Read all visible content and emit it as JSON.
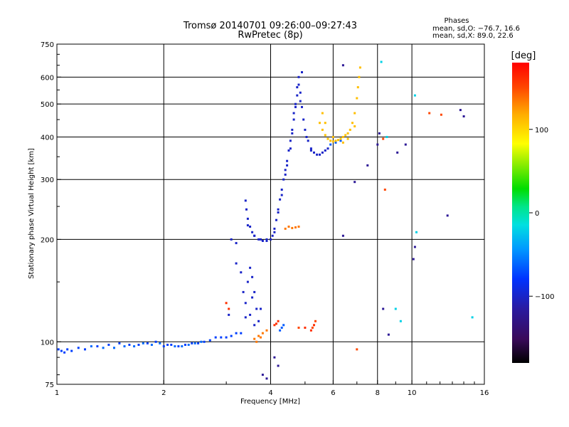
{
  "chart_data": {
    "type": "scatter",
    "title": "Tromsø 20140701 09:26:00–09:27:43",
    "subtitle": "RwPretec (8p)",
    "xlabel": "Frequency [MHz]",
    "ylabel": "Stationary phase Virtual Height [km]",
    "x_scale": "log",
    "y_scale": "log",
    "xlim": [
      1,
      16
    ],
    "ylim": [
      75,
      750
    ],
    "x_ticks": [
      1,
      2,
      4,
      6,
      8,
      10,
      16
    ],
    "y_ticks": [
      75,
      100,
      200,
      300,
      400,
      500,
      600,
      750
    ],
    "x_grid_lines": [
      2,
      4,
      6,
      8,
      10
    ],
    "y_grid_lines": [
      100,
      200,
      300,
      400,
      500,
      600
    ],
    "stats": {
      "heading": "Phases",
      "line1": "mean, sd,O: −76.7, 16.6",
      "line2": "mean, sd,X: 89.0, 22.6"
    },
    "colorbar": {
      "label": "[deg]",
      "range": [
        -180,
        180
      ],
      "ticks": [
        100,
        0,
        -100
      ]
    },
    "series": [
      {
        "phase": -75,
        "points": [
          [
            1.01,
            95
          ],
          [
            1.03,
            94
          ],
          [
            1.05,
            93
          ],
          [
            1.07,
            95
          ],
          [
            1.1,
            94
          ],
          [
            1.15,
            96
          ],
          [
            1.2,
            95
          ],
          [
            1.3,
            97
          ],
          [
            1.4,
            98
          ],
          [
            1.5,
            99
          ],
          [
            1.6,
            98
          ],
          [
            1.7,
            98
          ],
          [
            1.8,
            99
          ],
          [
            1.9,
            100
          ],
          [
            2.0,
            97
          ],
          [
            2.05,
            98
          ],
          [
            2.1,
            98
          ],
          [
            2.2,
            97
          ],
          [
            2.3,
            98
          ],
          [
            2.4,
            99
          ],
          [
            2.5,
            99
          ],
          [
            2.6,
            100
          ],
          [
            2.7,
            101
          ],
          [
            2.8,
            103
          ],
          [
            2.9,
            103
          ],
          [
            3.0,
            103
          ],
          [
            3.1,
            104
          ],
          [
            3.2,
            106
          ],
          [
            3.3,
            106
          ]
        ]
      },
      {
        "phase": -100,
        "points": [
          [
            3.4,
            130
          ],
          [
            3.45,
            150
          ],
          [
            3.5,
            165
          ],
          [
            3.55,
            155
          ],
          [
            3.6,
            140
          ],
          [
            3.65,
            125
          ],
          [
            3.7,
            115
          ],
          [
            3.5,
            120
          ],
          [
            3.4,
            118
          ],
          [
            3.55,
            135
          ],
          [
            3.6,
            112
          ],
          [
            3.35,
            140
          ],
          [
            3.75,
            125
          ],
          [
            3.2,
            170
          ],
          [
            3.3,
            160
          ],
          [
            3.1,
            200
          ],
          [
            3.2,
            195
          ],
          [
            3.05,
            120
          ]
        ]
      },
      {
        "phase": -100,
        "points": [
          [
            3.4,
            260
          ],
          [
            3.42,
            245
          ],
          [
            3.45,
            230
          ],
          [
            3.5,
            218
          ],
          [
            3.55,
            210
          ],
          [
            3.6,
            205
          ],
          [
            3.7,
            200
          ],
          [
            3.8,
            198
          ],
          [
            3.9,
            198
          ],
          [
            4.0,
            200
          ],
          [
            4.05,
            205
          ],
          [
            4.1,
            215
          ],
          [
            4.15,
            228
          ],
          [
            4.2,
            245
          ],
          [
            4.25,
            262
          ],
          [
            4.3,
            280
          ],
          [
            4.35,
            300
          ],
          [
            4.4,
            320
          ],
          [
            4.45,
            340
          ],
          [
            4.5,
            365
          ],
          [
            4.55,
            390
          ],
          [
            4.6,
            420
          ],
          [
            4.65,
            450
          ],
          [
            4.7,
            490
          ],
          [
            4.75,
            530
          ],
          [
            4.8,
            570
          ],
          [
            4.85,
            540
          ],
          [
            4.9,
            490
          ],
          [
            4.95,
            450
          ],
          [
            5.0,
            420
          ],
          [
            5.1,
            390
          ],
          [
            5.2,
            370
          ],
          [
            5.3,
            360
          ],
          [
            5.4,
            355
          ],
          [
            5.5,
            355
          ],
          [
            5.6,
            360
          ],
          [
            5.7,
            365
          ],
          [
            5.8,
            370
          ]
        ]
      },
      {
        "phase": -100,
        "points": [
          [
            3.45,
            220
          ],
          [
            3.6,
            205
          ],
          [
            3.75,
            200
          ],
          [
            3.9,
            200
          ],
          [
            4.1,
            210
          ],
          [
            4.3,
            270
          ],
          [
            4.45,
            330
          ],
          [
            4.6,
            410
          ],
          [
            4.7,
            500
          ],
          [
            4.8,
            600
          ],
          [
            4.9,
            620
          ],
          [
            5.05,
            400
          ],
          [
            5.2,
            365
          ],
          [
            4.2,
            240
          ],
          [
            4.4,
            310
          ],
          [
            4.55,
            370
          ],
          [
            4.65,
            470
          ],
          [
            4.75,
            560
          ],
          [
            4.85,
            510
          ]
        ]
      },
      {
        "phase": -65,
        "points": [
          [
            4.3,
            110
          ],
          [
            4.35,
            112
          ],
          [
            4.25,
            108
          ],
          [
            5.9,
            380
          ],
          [
            6.1,
            385
          ],
          [
            6.3,
            390
          ]
        ]
      },
      {
        "phase": 110,
        "points": [
          [
            5.5,
            440
          ],
          [
            5.6,
            420
          ],
          [
            5.7,
            405
          ],
          [
            5.8,
            395
          ],
          [
            5.9,
            390
          ],
          [
            6.0,
            388
          ],
          [
            6.1,
            390
          ],
          [
            6.2,
            392
          ],
          [
            6.3,
            395
          ],
          [
            6.4,
            400
          ],
          [
            6.5,
            405
          ],
          [
            6.6,
            410
          ],
          [
            6.7,
            420
          ],
          [
            6.8,
            440
          ],
          [
            6.9,
            470
          ],
          [
            7.0,
            520
          ],
          [
            7.05,
            560
          ],
          [
            7.1,
            600
          ],
          [
            7.15,
            640
          ],
          [
            5.6,
            470
          ],
          [
            5.7,
            440
          ],
          [
            6.0,
            400
          ],
          [
            6.4,
            385
          ],
          [
            6.6,
            395
          ],
          [
            6.9,
            430
          ]
        ]
      },
      {
        "phase": 135,
        "points": [
          [
            3.6,
            102
          ],
          [
            3.7,
            104
          ],
          [
            3.8,
            106
          ],
          [
            3.9,
            108
          ],
          [
            3.75,
            103
          ],
          [
            3.65,
            100
          ],
          [
            4.4,
            215
          ],
          [
            4.5,
            218
          ],
          [
            4.6,
            216
          ],
          [
            4.7,
            217
          ],
          [
            4.8,
            218
          ]
        ]
      },
      {
        "phase": 160,
        "points": [
          [
            4.1,
            112
          ],
          [
            4.2,
            115
          ],
          [
            4.15,
            113
          ],
          [
            5.0,
            110
          ],
          [
            5.2,
            108
          ],
          [
            5.3,
            112
          ],
          [
            3.0,
            130
          ],
          [
            3.05,
            125
          ]
        ]
      },
      {
        "phase": -60,
        "points": [
          [
            1.25,
            97
          ],
          [
            1.35,
            96
          ],
          [
            1.45,
            96
          ],
          [
            1.55,
            97
          ],
          [
            1.65,
            97
          ],
          [
            1.75,
            99
          ],
          [
            1.85,
            98
          ],
          [
            1.95,
            99
          ],
          [
            2.15,
            97
          ],
          [
            2.25,
            97
          ],
          [
            2.35,
            98
          ],
          [
            2.45,
            99
          ],
          [
            2.55,
            100
          ]
        ]
      },
      {
        "phase": -20,
        "points": [
          [
            8.2,
            665
          ],
          [
            10.2,
            530
          ],
          [
            9.0,
            125
          ],
          [
            14.8,
            118
          ],
          [
            9.3,
            115
          ],
          [
            10.3,
            210
          ],
          [
            8.5,
            400
          ]
        ]
      },
      {
        "phase": -120,
        "points": [
          [
            6.4,
            650
          ],
          [
            6.4,
            205
          ],
          [
            6.9,
            295
          ],
          [
            7.5,
            330
          ],
          [
            8.0,
            380
          ],
          [
            8.1,
            410
          ],
          [
            9.1,
            360
          ],
          [
            9.6,
            380
          ],
          [
            8.3,
            125
          ],
          [
            8.6,
            105
          ],
          [
            10.1,
            175
          ],
          [
            10.2,
            190
          ],
          [
            12.6,
            235
          ],
          [
            13.7,
            480
          ],
          [
            14.0,
            460
          ],
          [
            4.1,
            90
          ],
          [
            4.2,
            85
          ],
          [
            3.8,
            80
          ],
          [
            3.9,
            78
          ]
        ]
      },
      {
        "phase": 150,
        "points": [
          [
            11.2,
            470
          ],
          [
            12.1,
            465
          ],
          [
            7.0,
            95
          ],
          [
            8.3,
            395
          ],
          [
            8.4,
            280
          ],
          [
            5.25,
            110
          ],
          [
            5.35,
            115
          ],
          [
            4.8,
            110
          ]
        ]
      }
    ]
  }
}
